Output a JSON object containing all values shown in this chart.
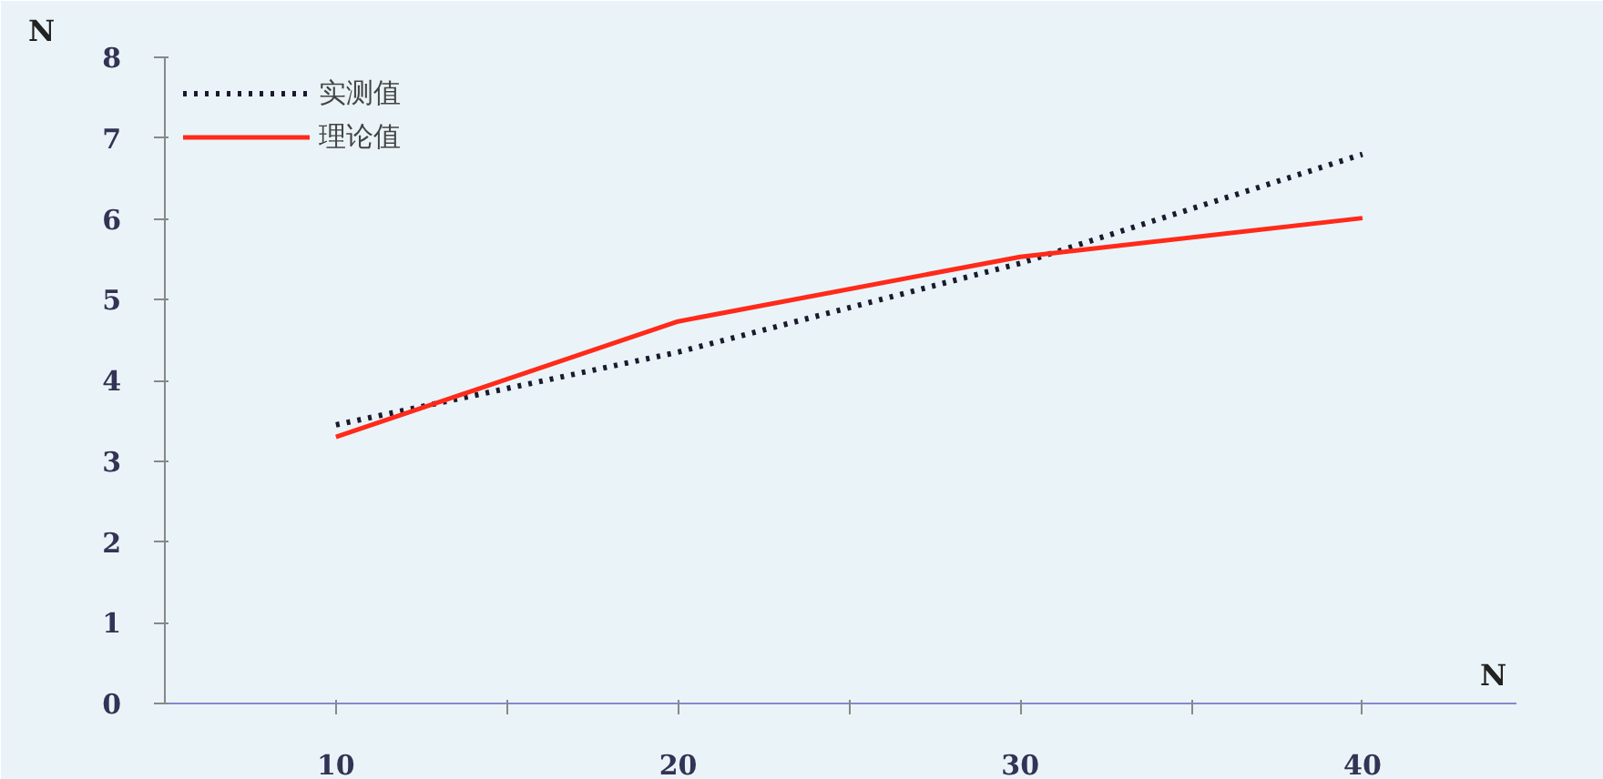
{
  "chart_data": {
    "type": "line",
    "xlabel": "N",
    "ylabel": "N",
    "x": [
      10,
      20,
      30,
      40
    ],
    "series": [
      {
        "name": "实测值",
        "color": "#1a1a2e",
        "line_style": "dotted",
        "values": [
          3.45,
          4.35,
          5.45,
          6.8
        ]
      },
      {
        "name": "理论值",
        "color": "#ff2a1a",
        "line_style": "solid",
        "values": [
          3.3,
          4.73,
          5.53,
          6.01
        ]
      }
    ],
    "xlim": [
      5,
      44.5
    ],
    "xticks": [
      10,
      {
        "value": 15,
        "label": null
      },
      20,
      {
        "value": 25,
        "label": null
      },
      30,
      {
        "value": 35,
        "label": null
      },
      40
    ],
    "ylim": [
      0,
      8
    ],
    "yticks": [
      0,
      1,
      2,
      3,
      4,
      5,
      6,
      7,
      8
    ],
    "grid": false,
    "legend": "top left",
    "marker": "none"
  }
}
